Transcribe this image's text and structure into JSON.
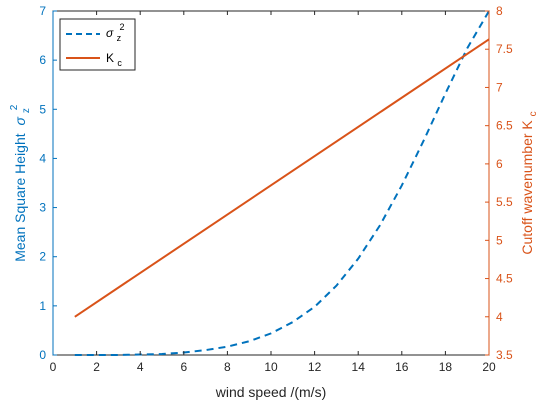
{
  "chart_data": {
    "type": "line",
    "xlabel": "wind speed /(m/s)",
    "ylabel_left": "Mean Square Height",
    "ylabel_left_symbol": "σ",
    "ylabel_left_sup": "2",
    "ylabel_left_sub": "z",
    "ylabel_right": "Cutoff  wavenumber K",
    "ylabel_right_sub": "c",
    "xlim": [
      0,
      20
    ],
    "ylim_left": [
      0,
      7
    ],
    "ylim_right": [
      3.5,
      8
    ],
    "xticks": [
      0,
      2,
      4,
      6,
      8,
      10,
      12,
      14,
      16,
      18,
      20
    ],
    "yticks_left": [
      0,
      1,
      2,
      3,
      4,
      5,
      6,
      7
    ],
    "yticks_right": [
      3.5,
      4,
      4.5,
      5,
      5.5,
      6,
      6.5,
      7,
      7.5,
      8
    ],
    "legend_position": "top-left",
    "grid": false,
    "colors": {
      "left_axis": "#0072BD",
      "right_axis": "#D95319",
      "box": "#262626"
    },
    "series": [
      {
        "name": "σ",
        "name_sup": "2",
        "name_sub": "z",
        "axis": "left",
        "style": "dashed",
        "color": "#0072BD",
        "x": [
          1,
          2,
          3,
          4,
          5,
          6,
          7,
          8,
          9,
          10,
          11,
          12,
          13,
          14,
          15,
          16,
          17,
          18,
          19,
          20
        ],
        "y": [
          0.0,
          0.0,
          0.0,
          0.01,
          0.02,
          0.05,
          0.1,
          0.17,
          0.28,
          0.44,
          0.67,
          0.98,
          1.41,
          1.96,
          2.64,
          3.45,
          4.36,
          5.32,
          6.24,
          7.0
        ]
      },
      {
        "name": "K",
        "name_sub": "c",
        "axis": "right",
        "style": "solid",
        "color": "#D95319",
        "x": [
          1,
          20
        ],
        "y": [
          4.0,
          7.63
        ]
      }
    ]
  }
}
